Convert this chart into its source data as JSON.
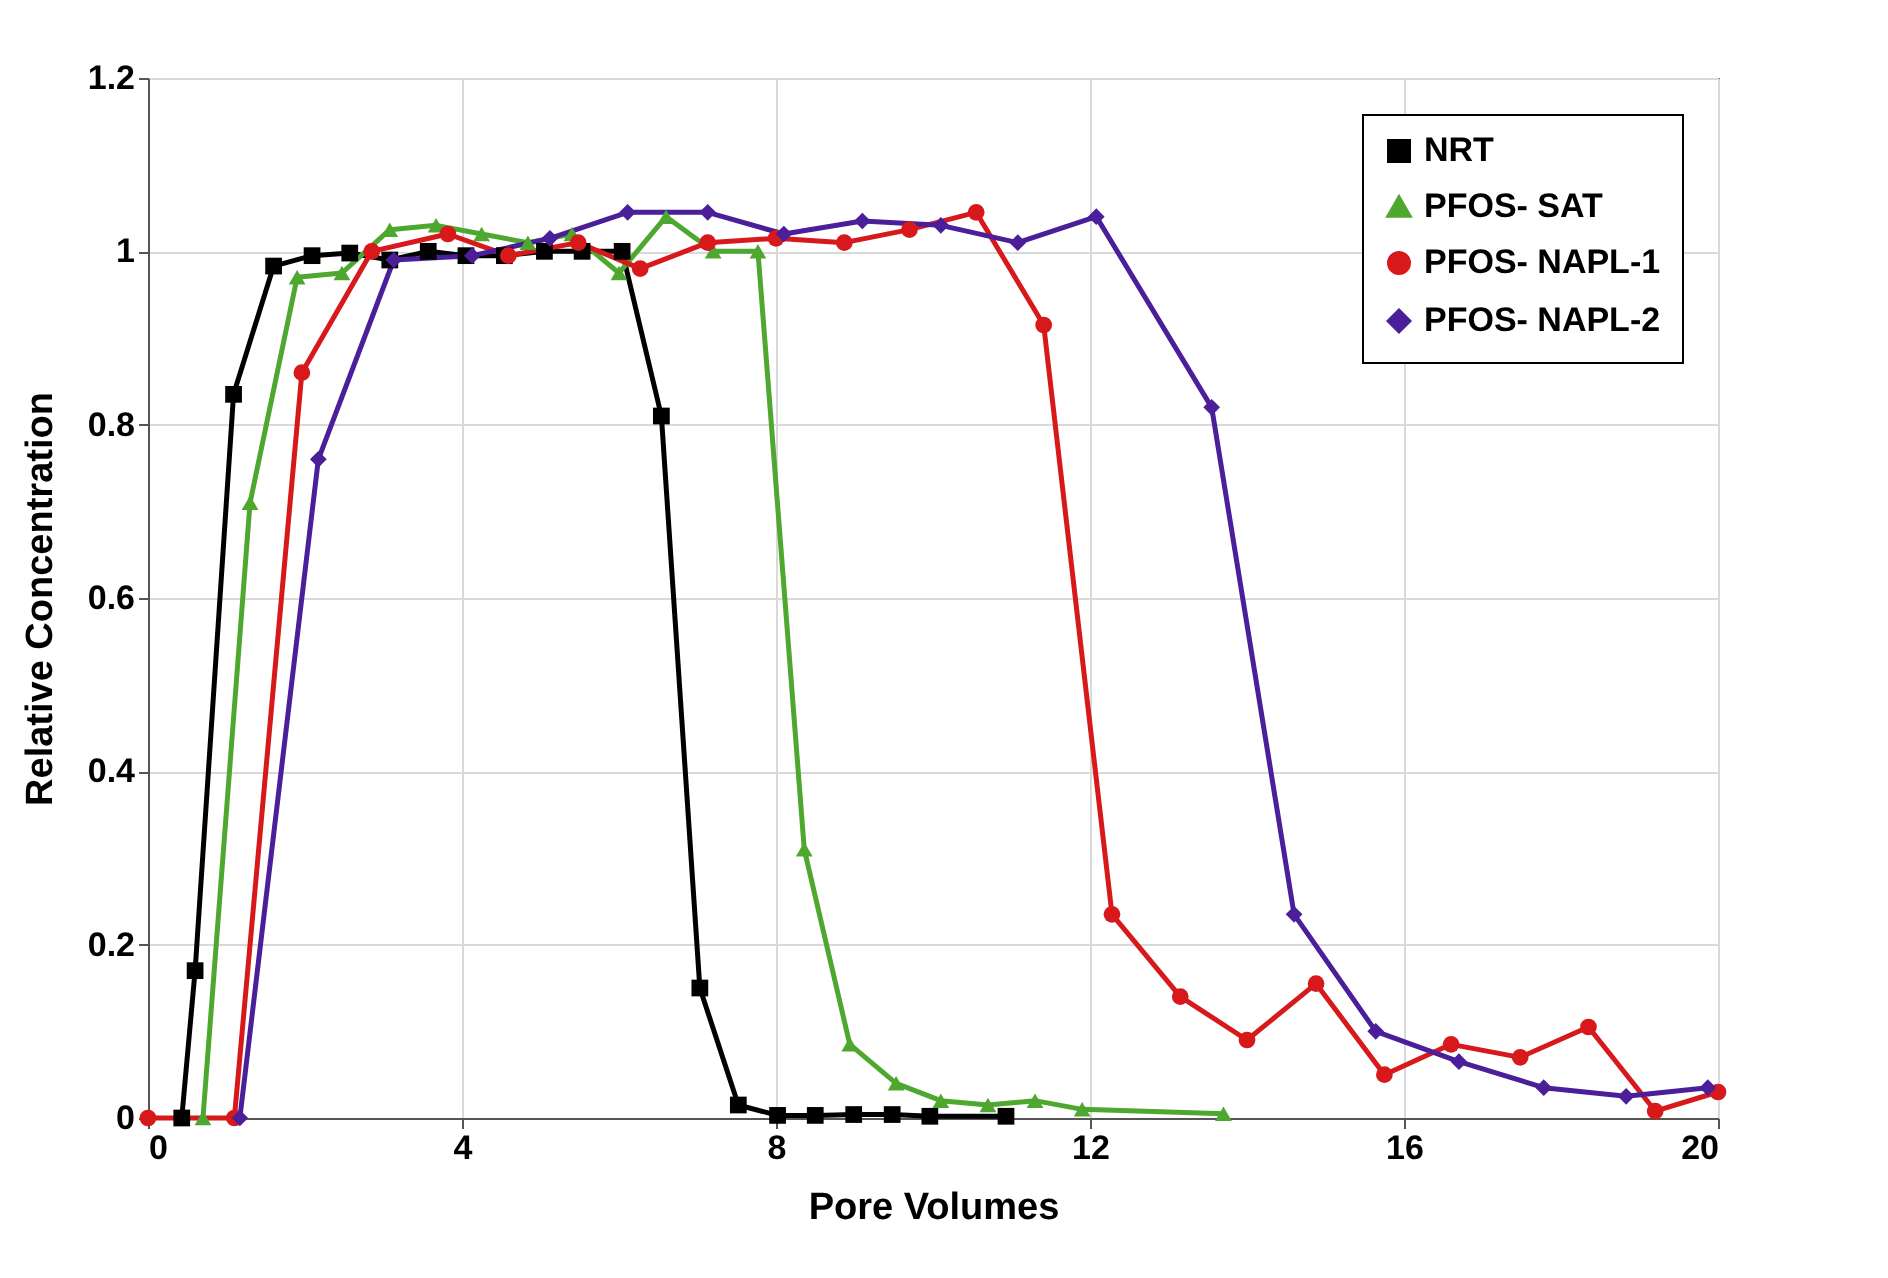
{
  "chart_data": {
    "type": "line",
    "xlabel": "Pore Volumes",
    "ylabel": "Relative Concentration",
    "xlim": [
      0,
      20
    ],
    "xticks": [
      0,
      4,
      8,
      12,
      16,
      20
    ],
    "ylim": [
      0,
      1.2
    ],
    "yticks": [
      0,
      0.2,
      0.4,
      0.6,
      0.8,
      1,
      1.2
    ],
    "grid": true,
    "legend": "top right",
    "series": [
      {
        "name": "NRT",
        "color": "#000000",
        "marker": "square",
        "x": [
          0.43,
          0.6,
          1.09,
          1.6,
          2.09,
          2.57,
          3.08,
          3.57,
          4.05,
          4.54,
          5.05,
          5.53,
          6.04,
          6.54,
          7.03,
          7.52,
          8.02,
          8.5,
          8.99,
          9.48,
          9.96,
          10.93
        ],
        "values": [
          0,
          0.17,
          0.835,
          0.983,
          0.995,
          0.998,
          0.99,
          1.0,
          0.995,
          0.995,
          1.0,
          1.0,
          1.0,
          0.81,
          0.15,
          0.015,
          0.003,
          0.003,
          0.004,
          0.004,
          0.002,
          0.002
        ]
      },
      {
        "name": "PFOS- SAT",
        "color": "#4ea72e",
        "marker": "triangle",
        "x": [
          0.7,
          1.3,
          1.9,
          2.47,
          3.08,
          3.67,
          4.25,
          4.84,
          5.4,
          6.0,
          6.6,
          7.2,
          7.77,
          8.36,
          8.94,
          9.53,
          10.1,
          10.7,
          11.3,
          11.9,
          13.7
        ],
        "values": [
          0,
          0.71,
          0.97,
          0.975,
          1.025,
          1.03,
          1.02,
          1.01,
          1.02,
          0.975,
          1.04,
          1.0,
          1.0,
          0.31,
          0.085,
          0.04,
          0.02,
          0.015,
          0.02,
          0.01,
          0.005
        ]
      },
      {
        "name": "PFOS- NAPL-1",
        "color": "#d7191c",
        "marker": "circle",
        "x": [
          0,
          1.1,
          1.96,
          2.85,
          3.82,
          4.59,
          5.48,
          6.27,
          7.13,
          8.0,
          8.87,
          9.7,
          10.55,
          11.41,
          12.28,
          13.15,
          14.0,
          14.88,
          15.75,
          16.6,
          17.48,
          18.35,
          19.2,
          20
        ],
        "values": [
          0,
          0,
          0.86,
          1.0,
          1.02,
          0.995,
          1.01,
          0.98,
          1.01,
          1.015,
          1.01,
          1.025,
          1.045,
          0.915,
          0.235,
          0.14,
          0.09,
          0.155,
          0.05,
          0.085,
          0.07,
          0.105,
          0.008,
          0.03
        ]
      },
      {
        "name": "PFOS- NAPL-2",
        "color": "#4b1e9a",
        "marker": "diamond",
        "x": [
          1.17,
          2.17,
          3.13,
          4.13,
          5.12,
          6.11,
          7.13,
          8.1,
          9.1,
          10.1,
          11.08,
          12.08,
          13.55,
          14.6,
          15.64,
          16.7,
          17.78,
          18.83,
          19.87
        ],
        "values": [
          0,
          0.76,
          0.99,
          0.995,
          1.015,
          1.045,
          1.045,
          1.02,
          1.035,
          1.03,
          1.01,
          1.04,
          0.82,
          0.235,
          0.1,
          0.065,
          0.035,
          0.025,
          0.035
        ]
      }
    ]
  }
}
